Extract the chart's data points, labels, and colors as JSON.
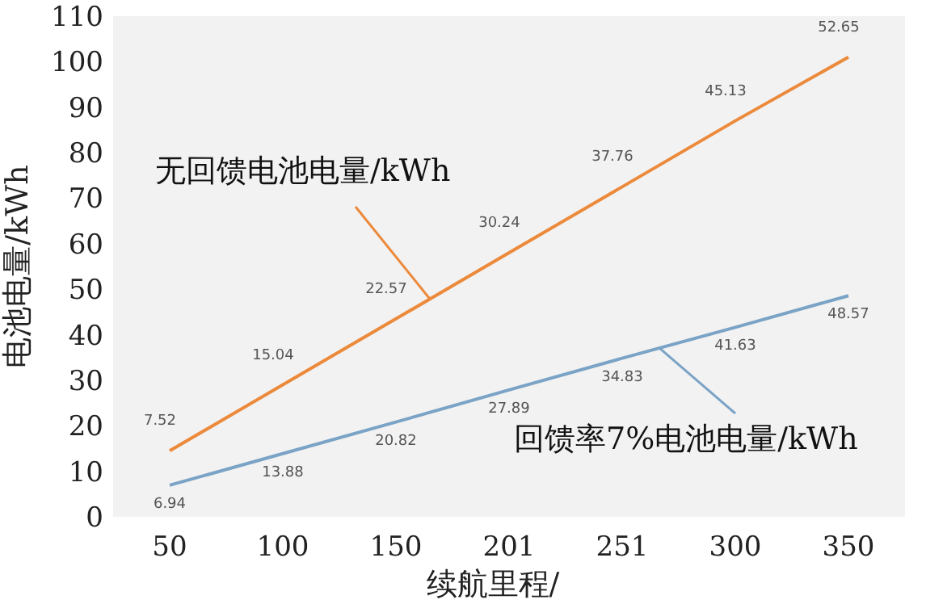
{
  "chart_data": {
    "type": "line",
    "xlabel": "续航里程/",
    "ylabel": "电池电量/kWh",
    "categories": [
      "50",
      "100",
      "150",
      "201",
      "251",
      "300",
      "350"
    ],
    "ylim": [
      0,
      110
    ],
    "yticks": [
      0,
      10,
      20,
      30,
      40,
      50,
      60,
      70,
      80,
      90,
      100,
      110
    ],
    "marker": "none",
    "annotations": [
      "7.52",
      "15.04",
      "22.57",
      "30.24",
      "37.76",
      "45.13",
      "52.65"
    ],
    "series": [
      {
        "name": "无回馈电池电量/kWh",
        "color": "#ec8a3c",
        "values": [
          14.5,
          29,
          43.5,
          58,
          72.5,
          87,
          101
        ]
      },
      {
        "name": "回馈率7%电池电量/kWh",
        "color": "#7aa3c6",
        "values": [
          6.94,
          13.88,
          20.82,
          27.89,
          34.83,
          41.63,
          48.57
        ],
        "value_labels": [
          "6.94",
          "13.88",
          "20.82",
          "27.89",
          "34.83",
          "41.63",
          "48.57"
        ]
      }
    ]
  }
}
